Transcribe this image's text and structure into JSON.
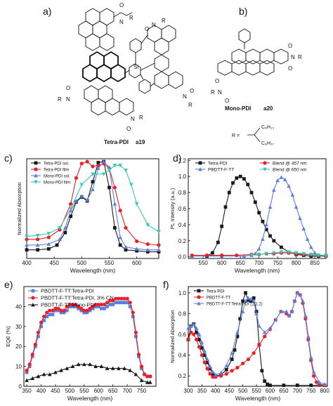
{
  "panels": {
    "a": "a)",
    "b": "b)",
    "c": "c)",
    "d": "d)",
    "e": "e)",
    "f": "f)"
  },
  "structures": {
    "tetra_label": "Tetra-PDI",
    "tetra_code": "a19",
    "mono_label": "Mono-PDI",
    "mono_code": "a20",
    "r_label": "R =",
    "r_c6": "C₆H₁₃",
    "r_c8": "C₈H₁₇",
    "o_atom": "O",
    "n_atom": "N",
    "r_atom": "R",
    "si_atom": "Si"
  },
  "colors": {
    "black": "#1a1a1a",
    "red": "#e8202a",
    "blue": "#5b7fe0",
    "cyan": "#39c9b0"
  },
  "chart_data": [
    {
      "id": "c",
      "type": "line",
      "xlabel": "Wavelength (nm)",
      "ylabel": "Normalized Absorption",
      "xlim": [
        400,
        640
      ],
      "ylim": [
        -0.02,
        1.02
      ],
      "xticks": [
        400,
        450,
        500,
        550,
        600
      ],
      "yticks": [],
      "legend_position": "top-left",
      "series": [
        {
          "name": "Tetra-PDI sol.",
          "color": "#1a1a1a",
          "marker": "square",
          "x": [
            400,
            420,
            440,
            455,
            470,
            480,
            490,
            500,
            510,
            520,
            530,
            540,
            550,
            560,
            570,
            580,
            600,
            620,
            640
          ],
          "y": [
            0.07,
            0.07,
            0.08,
            0.12,
            0.25,
            0.42,
            0.57,
            0.62,
            0.58,
            0.78,
            0.98,
            0.99,
            0.72,
            0.3,
            0.12,
            0.07,
            0.06,
            0.05,
            0.05
          ]
        },
        {
          "name": "Tetra-PDI film",
          "color": "#e8202a",
          "marker": "circle",
          "x": [
            400,
            420,
            440,
            460,
            480,
            490,
            500,
            510,
            520,
            530,
            540,
            550,
            560,
            570,
            580,
            600,
            620,
            640
          ],
          "y": [
            0.18,
            0.18,
            0.2,
            0.28,
            0.55,
            0.82,
            0.97,
            0.99,
            0.94,
            0.95,
            0.97,
            0.92,
            0.72,
            0.48,
            0.3,
            0.16,
            0.13,
            0.12
          ]
        },
        {
          "name": "Mono-PDI sol.",
          "color": "#5b7fe0",
          "marker": "triangle",
          "x": [
            400,
            420,
            440,
            460,
            470,
            480,
            490,
            500,
            510,
            520,
            530,
            540,
            550,
            560,
            570,
            580,
            600,
            620,
            640
          ],
          "y": [
            0.12,
            0.12,
            0.13,
            0.18,
            0.3,
            0.48,
            0.58,
            0.63,
            0.59,
            0.7,
            0.92,
            0.99,
            0.93,
            0.55,
            0.2,
            0.1,
            0.08,
            0.07,
            0.07
          ]
        },
        {
          "name": "Mono-PDI film",
          "color": "#39c9b0",
          "marker": "triangle-down",
          "x": [
            400,
            420,
            440,
            460,
            480,
            500,
            520,
            540,
            550,
            560,
            570,
            580,
            590,
            600,
            620,
            640
          ],
          "y": [
            0.21,
            0.22,
            0.24,
            0.3,
            0.5,
            0.75,
            0.86,
            0.86,
            0.9,
            0.95,
            0.95,
            0.9,
            0.75,
            0.55,
            0.33,
            0.26
          ]
        }
      ]
    },
    {
      "id": "d",
      "type": "line",
      "xlabel": "Wavelength (nm)",
      "ylabel": "PL Intensity (a.u.)",
      "xlim": [
        510,
        880
      ],
      "ylim": [
        -0.02,
        1.22
      ],
      "xticks": [
        550,
        600,
        650,
        700,
        750,
        800,
        850
      ],
      "yticks": [
        0.0,
        0.2,
        0.4,
        0.6,
        0.8,
        1.0,
        1.2
      ],
      "legend_position": "top",
      "series": [
        {
          "name": "Tetra-PDI",
          "color": "#1a1a1a",
          "marker": "square",
          "x": [
            560,
            575,
            590,
            600,
            610,
            620,
            630,
            640,
            650,
            660,
            670,
            680,
            690,
            700,
            710,
            720,
            730,
            740,
            760,
            780,
            800,
            820,
            840,
            860,
            880
          ],
          "y": [
            0.01,
            0.05,
            0.18,
            0.38,
            0.62,
            0.8,
            0.92,
            0.98,
            1.0,
            0.97,
            0.9,
            0.8,
            0.68,
            0.55,
            0.44,
            0.34,
            0.26,
            0.2,
            0.12,
            0.06,
            0.03,
            0.02,
            0.01,
            0.01,
            0.01
          ]
        },
        {
          "name": "PBDTT-F-TT",
          "color": "#5b7fe0",
          "marker": "triangle",
          "x": [
            520,
            600,
            660,
            680,
            690,
            700,
            710,
            720,
            730,
            740,
            750,
            760,
            770,
            780,
            790,
            800,
            810,
            820,
            830,
            840,
            850,
            860,
            880
          ],
          "y": [
            0.01,
            0.01,
            0.01,
            0.02,
            0.04,
            0.1,
            0.22,
            0.4,
            0.62,
            0.83,
            0.95,
            0.99,
            0.96,
            0.88,
            0.77,
            0.62,
            0.48,
            0.35,
            0.22,
            0.12,
            0.05,
            0.02,
            0.01
          ]
        },
        {
          "name": "Blend @ 457 nm",
          "color": "#e8202a",
          "marker": "circle",
          "x": [
            520,
            560,
            600,
            640,
            680,
            700,
            720,
            740,
            760,
            780,
            800,
            820,
            840,
            860,
            880
          ],
          "y": [
            0.02,
            0.02,
            0.02,
            0.02,
            0.03,
            0.03,
            0.04,
            0.04,
            0.05,
            0.05,
            0.04,
            0.03,
            0.03,
            0.02,
            0.02
          ]
        },
        {
          "name": "Blend @ 650 nm",
          "color": "#39c9b0",
          "marker": "triangle-down",
          "x": [
            680,
            700,
            720,
            740,
            760,
            780,
            800,
            820,
            840,
            860,
            880
          ],
          "y": [
            0.02,
            0.03,
            0.04,
            0.05,
            0.06,
            0.06,
            0.05,
            0.04,
            0.03,
            0.02,
            0.02
          ]
        }
      ]
    },
    {
      "id": "e",
      "type": "line",
      "xlabel": "Wavelength (nm)",
      "ylabel": "EQE (%)",
      "xlim": [
        340,
        800
      ],
      "ylim": [
        0,
        50
      ],
      "xticks": [
        350,
        400,
        450,
        500,
        550,
        600,
        650,
        700,
        750
      ],
      "yticks": [
        0,
        10,
        20,
        30,
        40
      ],
      "legend_position": "top-left",
      "series": [
        {
          "name": "PBDTT-F-TT:Tetra-PDI",
          "color": "#5b7fe0",
          "marker": "square",
          "x": [
            350,
            360,
            370,
            380,
            390,
            400,
            410,
            420,
            430,
            440,
            450,
            460,
            470,
            480,
            490,
            500,
            510,
            520,
            530,
            540,
            550,
            560,
            570,
            580,
            590,
            600,
            610,
            620,
            630,
            640,
            650,
            660,
            670,
            680,
            690,
            700,
            710,
            720,
            730,
            740,
            750,
            760,
            770,
            780
          ],
          "y": [
            7,
            10,
            15,
            20,
            25,
            30,
            33,
            35,
            36,
            36,
            38,
            38,
            37,
            37,
            38,
            40,
            40,
            40,
            39,
            38,
            37,
            37,
            38,
            39,
            40,
            40,
            39,
            39,
            40,
            41,
            41,
            42,
            42,
            42,
            42,
            42,
            40,
            35,
            25,
            15,
            9,
            6,
            5,
            5
          ]
        },
        {
          "name": "PBDTT-F-TT:Tetra-PDI, 3% CN",
          "color": "#e8202a",
          "marker": "circle",
          "x": [
            350,
            360,
            370,
            380,
            390,
            400,
            410,
            420,
            430,
            440,
            450,
            460,
            470,
            480,
            490,
            500,
            510,
            520,
            530,
            540,
            550,
            560,
            570,
            580,
            590,
            600,
            610,
            620,
            630,
            640,
            650,
            660,
            670,
            680,
            690,
            700,
            710,
            720,
            730,
            740,
            750,
            760,
            770,
            780
          ],
          "y": [
            8,
            11,
            16,
            21,
            27,
            32,
            35,
            37,
            38,
            38,
            39,
            39,
            38,
            38,
            40,
            41,
            41,
            41,
            40,
            39,
            38,
            38,
            39,
            40,
            41,
            41,
            41,
            41,
            42,
            43,
            43,
            44,
            44,
            44,
            44,
            44,
            42,
            37,
            27,
            16,
            10,
            6,
            5,
            5
          ]
        },
        {
          "name": "PBDTT-F-TT:Mono-PDI",
          "color": "#1a1a1a",
          "marker": "triangle",
          "x": [
            350,
            370,
            390,
            410,
            430,
            450,
            470,
            490,
            510,
            530,
            550,
            570,
            590,
            610,
            630,
            650,
            670,
            690,
            710,
            730,
            750,
            770,
            780
          ],
          "y": [
            3,
            4,
            5,
            6,
            6,
            7,
            8,
            9,
            10,
            11,
            11,
            11,
            10,
            10,
            9,
            9,
            9,
            9,
            8,
            6,
            3,
            2,
            2
          ]
        }
      ]
    },
    {
      "id": "f",
      "type": "line",
      "xlabel": "Wavelength (nm)",
      "ylabel": "Normalized Absorption",
      "xlim": [
        300,
        810
      ],
      "ylim": [
        0.1,
        1.06
      ],
      "xticks": [
        300,
        350,
        400,
        450,
        500,
        550,
        600,
        650,
        700,
        750,
        800
      ],
      "yticks": [
        0.2,
        0.4,
        0.6,
        0.8,
        1.0
      ],
      "legend_position": "top-left",
      "series": [
        {
          "name": "Tetra-PDI",
          "color": "#1a1a1a",
          "marker": "square",
          "x": [
            300,
            310,
            320,
            330,
            340,
            350,
            360,
            370,
            380,
            390,
            400,
            420,
            440,
            460,
            470,
            480,
            490,
            500,
            510,
            520,
            530,
            540,
            550,
            560,
            570,
            580,
            590,
            600,
            650,
            700,
            750,
            800
          ],
          "y": [
            0.55,
            0.68,
            0.7,
            0.62,
            0.55,
            0.47,
            0.4,
            0.33,
            0.27,
            0.22,
            0.2,
            0.21,
            0.26,
            0.36,
            0.45,
            0.58,
            0.75,
            0.92,
            1.0,
            0.93,
            0.92,
            0.95,
            0.82,
            0.5,
            0.25,
            0.15,
            0.12,
            0.11,
            0.11,
            0.11,
            0.11,
            0.11
          ]
        },
        {
          "name": "PBDTT-F-TT",
          "color": "#e8202a",
          "marker": "circle",
          "x": [
            300,
            310,
            320,
            330,
            340,
            350,
            360,
            370,
            380,
            390,
            400,
            420,
            440,
            460,
            480,
            500,
            520,
            540,
            560,
            580,
            600,
            620,
            640,
            660,
            670,
            680,
            690,
            700,
            710,
            720,
            730,
            740,
            750,
            760,
            770,
            780,
            800
          ],
          "y": [
            0.55,
            0.62,
            0.6,
            0.55,
            0.48,
            0.4,
            0.33,
            0.27,
            0.22,
            0.19,
            0.19,
            0.2,
            0.22,
            0.25,
            0.28,
            0.32,
            0.36,
            0.42,
            0.5,
            0.58,
            0.65,
            0.74,
            0.82,
            0.8,
            0.78,
            0.82,
            0.92,
            1.0,
            0.98,
            0.9,
            0.75,
            0.55,
            0.35,
            0.2,
            0.14,
            0.12,
            0.11
          ]
        },
        {
          "name": "PBDTT-F-TT:Tetra-PDI (1:1.2)",
          "color": "#5b7fe0",
          "marker": "triangle",
          "x": [
            300,
            310,
            320,
            330,
            340,
            350,
            360,
            370,
            380,
            390,
            400,
            420,
            440,
            460,
            480,
            500,
            510,
            520,
            530,
            540,
            550,
            560,
            580,
            600,
            620,
            640,
            660,
            670,
            680,
            690,
            700,
            710,
            720,
            730,
            740,
            750,
            760,
            780,
            800
          ],
          "y": [
            0.66,
            0.68,
            0.7,
            0.66,
            0.6,
            0.52,
            0.44,
            0.36,
            0.29,
            0.24,
            0.21,
            0.23,
            0.3,
            0.42,
            0.62,
            0.82,
            0.92,
            0.95,
            0.94,
            0.92,
            0.8,
            0.68,
            0.62,
            0.66,
            0.74,
            0.82,
            0.82,
            0.78,
            0.82,
            0.92,
            1.0,
            0.98,
            0.92,
            0.78,
            0.58,
            0.38,
            0.24,
            0.14,
            0.12
          ]
        }
      ]
    }
  ]
}
